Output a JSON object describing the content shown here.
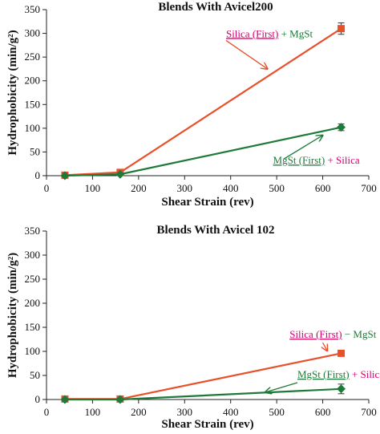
{
  "chart_data": [
    {
      "type": "line",
      "title": "Blends With Avicel200",
      "xlabel": "Shear Strain (rev)",
      "ylabel": "Hydrophobicity (min/g²)",
      "xlim": [
        0,
        700
      ],
      "ylim": [
        0,
        350
      ],
      "xticks": [
        0,
        100,
        200,
        300,
        400,
        500,
        600,
        700
      ],
      "yticks": [
        0,
        50,
        100,
        150,
        200,
        250,
        300,
        350
      ],
      "grid": false,
      "series": [
        {
          "key": "silica-first",
          "color": "#e8502a",
          "marker": "square",
          "x": [
            40,
            160,
            640
          ],
          "y": [
            1,
            7,
            310
          ],
          "error": [
            0,
            0,
            12
          ]
        },
        {
          "key": "mgst-first",
          "color": "#1f7a3a",
          "marker": "diamond",
          "x": [
            40,
            160,
            640
          ],
          "y": [
            0,
            3,
            102
          ],
          "error": [
            0,
            0,
            7
          ]
        }
      ],
      "annotations": [
        {
          "series": "silica-first",
          "parts": [
            {
              "text": "Silica (First)",
              "color": "#d4006e",
              "underline": true
            },
            {
              "text": " + MgSt",
              "color": "#1f7a3a",
              "underline": false
            }
          ],
          "color": "#e8502a",
          "label_at": [
            390,
            292
          ],
          "arrow_from": [
            390,
            285
          ],
          "arrow_to": [
            480,
            225
          ]
        },
        {
          "series": "mgst-first",
          "parts": [
            {
              "text": "MgSt (First)",
              "color": "#1f7a3a",
              "underline": true
            },
            {
              "text": " + Silica",
              "color": "#d4006e",
              "underline": false
            }
          ],
          "color": "#1f7a3a",
          "label_at": [
            492,
            25
          ],
          "arrow_from": [
            515,
            35
          ],
          "arrow_to": [
            600,
            85
          ]
        }
      ]
    },
    {
      "type": "line",
      "title": "Blends With Avicel 102",
      "xlabel": "Shear Strain (rev)",
      "ylabel": "Hydrophobicity (min/g²)",
      "xlim": [
        0,
        700
      ],
      "ylim": [
        0,
        350
      ],
      "xticks": [
        0,
        100,
        200,
        300,
        400,
        500,
        600,
        700
      ],
      "yticks": [
        0,
        50,
        100,
        150,
        200,
        250,
        300,
        350
      ],
      "grid": false,
      "series": [
        {
          "key": "silica-first",
          "color": "#e8502a",
          "marker": "square",
          "x": [
            40,
            160,
            640
          ],
          "y": [
            1,
            1,
            96
          ],
          "error": [
            0,
            0,
            0
          ]
        },
        {
          "key": "mgst-first",
          "color": "#1f7a3a",
          "marker": "diamond",
          "x": [
            40,
            160,
            640
          ],
          "y": [
            0,
            0,
            22
          ],
          "error": [
            0,
            0,
            10
          ]
        }
      ],
      "annotations": [
        {
          "series": "silica-first",
          "parts": [
            {
              "text": "Silica (First)",
              "color": "#d4006e",
              "underline": true
            },
            {
              "text": " − MgSt",
              "color": "#1f7a3a",
              "underline": false
            }
          ],
          "color": "#e8502a",
          "label_at": [
            528,
            128
          ],
          "arrow_from": [
            600,
            118
          ],
          "arrow_to": [
            610,
            101
          ]
        },
        {
          "series": "mgst-first",
          "parts": [
            {
              "text": "MgSt (First)",
              "color": "#1f7a3a",
              "underline": true
            },
            {
              "text": " + Silica",
              "color": "#d4006e",
              "underline": false
            }
          ],
          "color": "#1f7a3a",
          "label_at": [
            545,
            45
          ],
          "arrow_from": [
            545,
            35
          ],
          "arrow_to": [
            475,
            15
          ]
        }
      ]
    }
  ]
}
